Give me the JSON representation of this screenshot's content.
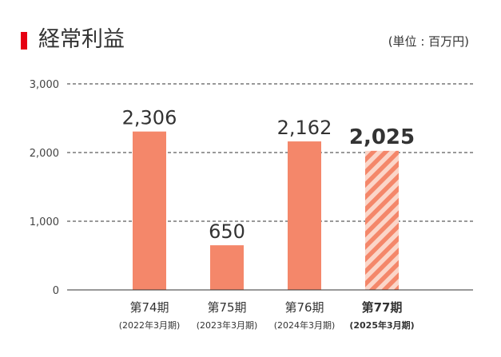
{
  "header": {
    "title": "経常利益",
    "unit": "(単位 : 百万円)"
  },
  "colors": {
    "accent": "#e60012",
    "bar": "#f4876a",
    "hatch_light": "#fbd6c9",
    "axis": "#333333",
    "grid": "#333333"
  },
  "chart_data": {
    "type": "bar",
    "title": "経常利益",
    "xlabel": "",
    "ylabel": "",
    "unit": "(単位 : 百万円)",
    "ylim": [
      0,
      3000
    ],
    "yticks": [
      0,
      1000,
      2000,
      3000
    ],
    "ytick_labels": [
      "0",
      "1,000",
      "2,000",
      "3,000"
    ],
    "grid": true,
    "categories": [
      "第74期",
      "第75期",
      "第76期",
      "第77期"
    ],
    "periods": [
      "(2022年3月期)",
      "(2023年3月期)",
      "(2024年3月期)",
      "(2025年3月期)"
    ],
    "values": [
      2306,
      650,
      2162,
      2025
    ],
    "value_labels": [
      "2,306",
      "650",
      "2,162",
      "2,025"
    ],
    "highlight_index": 3
  }
}
